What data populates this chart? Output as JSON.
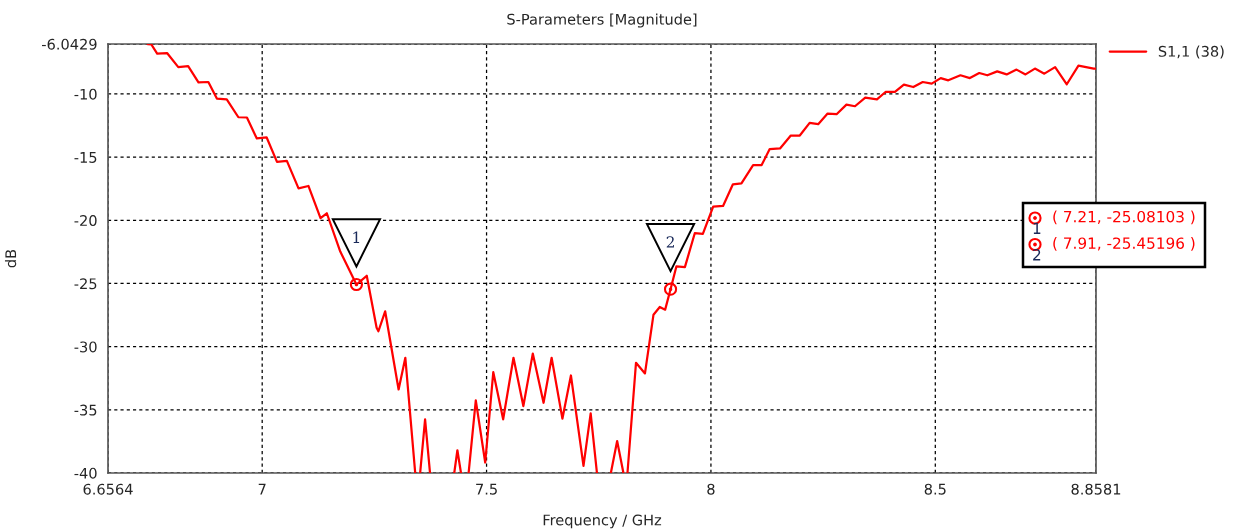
{
  "chart_data": {
    "type": "line",
    "title": "S-Parameters [Magnitude]",
    "xlabel": "Frequency / GHz",
    "ylabel": "dB",
    "xlim": [
      6.6564,
      8.8581
    ],
    "xticks": [
      6.6564,
      7,
      7.5,
      8,
      8.5,
      8.8581
    ],
    "ylim": [
      -40,
      -6.0429
    ],
    "yticks": [
      -40,
      -35,
      -30,
      -25,
      -20,
      -15,
      -10,
      -6.0429
    ],
    "grid": true,
    "legend": "top right",
    "line_style": "solid",
    "marker": "none",
    "series": [
      {
        "name": "S1,1 (38)",
        "color": "#ff0000",
        "x": [
          6.745,
          6.753,
          6.766,
          6.788,
          6.813,
          6.835,
          6.858,
          6.88,
          6.899,
          6.921,
          6.947,
          6.966,
          6.988,
          7.01,
          7.033,
          7.055,
          7.081,
          7.103,
          7.13,
          7.144,
          7.174,
          7.21,
          7.233,
          7.255,
          7.259,
          7.274,
          7.304,
          7.319,
          7.341,
          7.346,
          7.352,
          7.363,
          7.374,
          7.401,
          7.428,
          7.435,
          7.443,
          7.451,
          7.46,
          7.476,
          7.497,
          7.515,
          7.537,
          7.56,
          7.582,
          7.603,
          7.627,
          7.645,
          7.669,
          7.688,
          7.716,
          7.732,
          7.746,
          7.761,
          7.777,
          7.791,
          7.805,
          7.81,
          7.814,
          7.833,
          7.853,
          7.872,
          7.886,
          7.898,
          7.91,
          7.923,
          7.942,
          7.964,
          7.982,
          8.005,
          8.027,
          8.049,
          8.068,
          8.094,
          8.113,
          8.131,
          8.154,
          8.178,
          8.198,
          8.22,
          8.239,
          8.26,
          8.28,
          8.302,
          8.321,
          8.344,
          8.37,
          8.389,
          8.41,
          8.43,
          8.451,
          8.472,
          8.492,
          8.512,
          8.529,
          8.556,
          8.577,
          8.598,
          8.616,
          8.638,
          8.659,
          8.681,
          8.701,
          8.722,
          8.743,
          8.767,
          8.793,
          8.819,
          8.853,
          8.8581
        ],
        "values": [
          -6.05,
          -6.08,
          -6.81,
          -6.76,
          -7.87,
          -7.8,
          -9.08,
          -9.05,
          -10.36,
          -10.42,
          -11.84,
          -11.86,
          -13.52,
          -13.44,
          -15.37,
          -15.29,
          -17.47,
          -17.28,
          -19.83,
          -19.44,
          -22.47,
          -25.08,
          -24.39,
          -28.5,
          -28.78,
          -27.2,
          -33.39,
          -30.88,
          -40,
          null,
          -40,
          -35.75,
          -40,
          null,
          -40,
          -38.2,
          -40,
          null,
          -40,
          -34.25,
          -39.17,
          -32.02,
          -35.75,
          -30.88,
          -34.7,
          -30.55,
          -34.44,
          -30.88,
          -35.7,
          -32.28,
          -39.44,
          -35.28,
          -40,
          null,
          -40,
          -37.47,
          -40,
          null,
          -40,
          -31.28,
          -32.12,
          -27.47,
          -26.86,
          -27.07,
          -25.45,
          -23.65,
          -23.7,
          -21.02,
          -21.07,
          -18.92,
          -18.86,
          -17.15,
          -17.07,
          -15.63,
          -15.63,
          -14.36,
          -14.31,
          -13.29,
          -13.29,
          -12.29,
          -12.39,
          -11.55,
          -11.6,
          -10.84,
          -10.97,
          -10.28,
          -10.42,
          -9.84,
          -9.84,
          -9.26,
          -9.45,
          -9.05,
          -9.18,
          -8.74,
          -8.92,
          -8.52,
          -8.74,
          -8.34,
          -8.52,
          -8.21,
          -8.45,
          -8.07,
          -8.45,
          -7.99,
          -8.39,
          -7.87,
          -9.23,
          -7.76,
          -7.99,
          -8.0
        ]
      }
    ],
    "annotations": [
      {
        "text": "1",
        "x": 7.21,
        "y": -25.08103
      },
      {
        "text": "2",
        "x": 7.91,
        "y": -25.45196
      },
      "( 7.21, -25.08103 )",
      "( 7.91, -25.45196 )"
    ]
  }
}
